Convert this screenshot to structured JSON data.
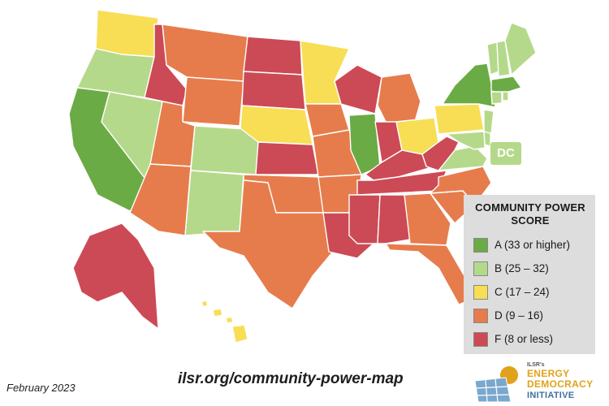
{
  "grade_colors": {
    "A": "#6aab45",
    "B": "#b5d98a",
    "C": "#f7de55",
    "D": "#e67c4c",
    "F": "#cc4a55"
  },
  "states": {
    "WA": "C",
    "OR": "B",
    "CA": "A",
    "NV": "B",
    "ID": "F",
    "MT": "D",
    "WY": "D",
    "UT": "D",
    "CO": "B",
    "AZ": "D",
    "NM": "B",
    "ND": "F",
    "SD": "F",
    "NE": "C",
    "KS": "F",
    "OK": "D",
    "TX": "D",
    "MN": "C",
    "IA": "D",
    "MO": "D",
    "AR": "D",
    "LA": "F",
    "WI": "F",
    "IL": "A",
    "MI": "D",
    "IN": "F",
    "OH": "C",
    "KY": "F",
    "TN": "F",
    "MS": "F",
    "AL": "F",
    "GA": "D",
    "FL": "D",
    "SC": "D",
    "NC": "D",
    "VA": "B",
    "WV": "F",
    "PA": "C",
    "NY": "A",
    "VT": "B",
    "NH": "B",
    "ME": "B",
    "MA": "A",
    "CT": "B",
    "RI": "B",
    "NJ": "B",
    "DE": "B",
    "MD": "B",
    "AK": "F",
    "HI": "C",
    "DC": "B"
  },
  "dc_label": "DC",
  "legend": {
    "title": "COMMUNITY POWER SCORE",
    "items": [
      {
        "grade": "A",
        "label": "A (33 or higher)"
      },
      {
        "grade": "B",
        "label": "B (25 – 32)"
      },
      {
        "grade": "C",
        "label": "C (17 – 24)"
      },
      {
        "grade": "D",
        "label": "D (9 – 16)"
      },
      {
        "grade": "F",
        "label": "F (8 or less)"
      }
    ]
  },
  "date": "February 2023",
  "url": "ilsr.org/community-power-map",
  "logo": {
    "org": "ILSR's",
    "line1": "ENERGY",
    "line2": "DEMOCRACY",
    "line3": "INITIATIVE"
  }
}
